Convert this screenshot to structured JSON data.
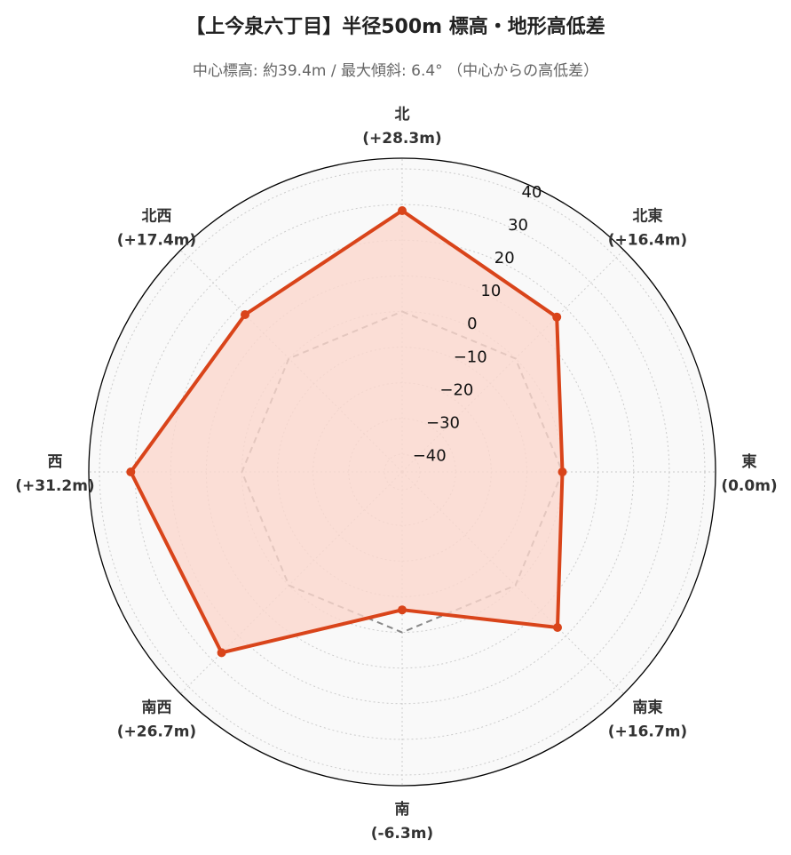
{
  "chart_data": {
    "type": "radar",
    "title": "【上今泉六丁目】半径500m 標高・地形高低差",
    "subtitle": "中心標高: 約39.4m / 最大傾斜: 6.4° （中心からの高低差）",
    "categories": [
      "北",
      "北東",
      "東",
      "南東",
      "南",
      "南西",
      "西",
      "北西"
    ],
    "category_values_text": [
      "(+28.3m)",
      "(+16.4m)",
      "(0.0m)",
      "(+16.7m)",
      "(-6.3m)",
      "(+26.7m)",
      "(+31.2m)",
      "(+17.4m)"
    ],
    "series": [
      {
        "values": [
          28.3,
          16.4,
          0.0,
          16.7,
          -6.3,
          26.7,
          31.2,
          17.4
        ],
        "color": "#d9441a",
        "fill": "#fbd7cd"
      }
    ],
    "reference_line": {
      "value": 0,
      "style": "dashed",
      "color": "#888888"
    },
    "rlim": [
      -45,
      43
    ],
    "rticks": [
      40,
      30,
      20,
      10,
      0,
      -10,
      -20,
      -30,
      -40
    ],
    "rtick_labels": [
      "40",
      "30",
      "20",
      "10",
      "0",
      "−10",
      "−20",
      "−30",
      "−40"
    ],
    "grid": true,
    "background": "#f9f9f9"
  }
}
